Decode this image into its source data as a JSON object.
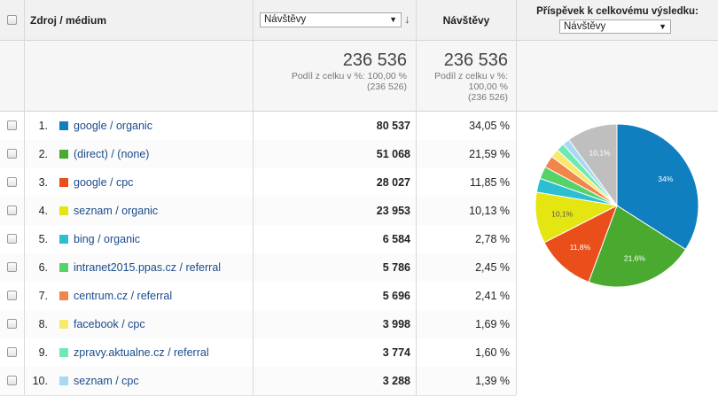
{
  "header": {
    "dimension_title": "Zdroj / médium",
    "metric_select": "Návštěvy",
    "metric_title": "Návštěvy",
    "contribution_title": "Příspěvek k celkovému výsledku:",
    "contribution_select": "Návštěvy"
  },
  "totals": {
    "metric_value": "236 536",
    "metric_share_line1": "Podíl z celku v %: 100,00 %",
    "metric_share_line2": "(236 526)",
    "col_value": "236 536",
    "col_share_line1": "Podíl z celku v %:",
    "col_share_line2": "100,00 %",
    "col_share_line3": "(236 526)"
  },
  "rows": [
    {
      "index": "1.",
      "label": "google / organic",
      "visits": "80 537",
      "pct": "34,05 %",
      "color": "#0f7fc0"
    },
    {
      "index": "2.",
      "label": "(direct) / (none)",
      "visits": "51 068",
      "pct": "21,59 %",
      "color": "#4aaa2f"
    },
    {
      "index": "3.",
      "label": "google / cpc",
      "visits": "28 027",
      "pct": "11,85 %",
      "color": "#e94e1b"
    },
    {
      "index": "4.",
      "label": "seznam / organic",
      "visits": "23 953",
      "pct": "10,13 %",
      "color": "#e5e512"
    },
    {
      "index": "5.",
      "label": "bing / organic",
      "visits": "6 584",
      "pct": "2,78 %",
      "color": "#2bbfd1"
    },
    {
      "index": "6.",
      "label": "intranet2015.ppas.cz / referral",
      "visits": "5 786",
      "pct": "2,45 %",
      "color": "#56d26b"
    },
    {
      "index": "7.",
      "label": "centrum.cz / referral",
      "visits": "5 696",
      "pct": "2,41 %",
      "color": "#f2854a"
    },
    {
      "index": "8.",
      "label": "facebook / cpc",
      "visits": "3 998",
      "pct": "1,69 %",
      "color": "#f7e96b"
    },
    {
      "index": "9.",
      "label": "zpravy.aktualne.cz / referral",
      "visits": "3 774",
      "pct": "1,60 %",
      "color": "#6fe8b4"
    },
    {
      "index": "10.",
      "label": "seznam / cpc",
      "visits": "3 288",
      "pct": "1,39 %",
      "color": "#a8d8f4"
    }
  ],
  "pie": {
    "other_color": "#bfbfbf",
    "labels": {
      "google_organic": "34%",
      "direct": "21,6%",
      "google_cpc": "11,8%",
      "seznam_organic": "10,1%",
      "other": "10,1%"
    }
  },
  "chart_data": {
    "type": "pie",
    "categories": [
      "google / organic",
      "(direct) / (none)",
      "google / cpc",
      "seznam / organic",
      "bing / organic",
      "intranet2015.ppas.cz / referral",
      "centrum.cz / referral",
      "facebook / cpc",
      "zpravy.aktualne.cz / referral",
      "seznam / cpc",
      "other"
    ],
    "values": [
      34.05,
      21.59,
      11.85,
      10.13,
      2.78,
      2.45,
      2.41,
      1.69,
      1.6,
      1.39,
      10.06
    ]
  }
}
